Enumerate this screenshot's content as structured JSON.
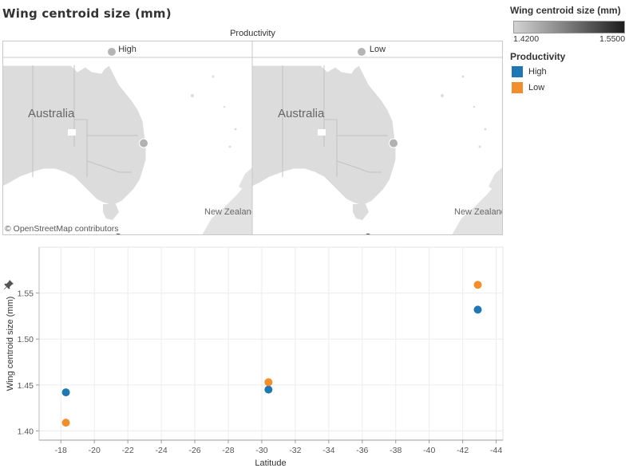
{
  "title": "Wing centroid size (mm)",
  "maps": {
    "header": "Productivity",
    "panels": [
      {
        "title": "High",
        "country_label": "Australia",
        "nz_label": "New Zealand"
      },
      {
        "title": "Low",
        "country_label": "Australia",
        "nz_label": "New Zealand"
      }
    ],
    "attribution": "© OpenStreetMap contributors"
  },
  "legend_size": {
    "title": "Wing centroid size (mm)",
    "min_label": "1.4200",
    "max_label": "1.5500",
    "color_low": "#d4d4d4",
    "color_high": "#1c1c1c"
  },
  "legend_productivity": {
    "title": "Productivity",
    "items": [
      {
        "label": "High",
        "color": "#1f77b4"
      },
      {
        "label": "Low",
        "color": "#f28e2b"
      }
    ]
  },
  "chart_data": {
    "type": "scatter",
    "xlabel": "Latitude",
    "ylabel": "Wing centroid size (mm)",
    "xlim": [
      -16.7,
      -44.4
    ],
    "ylim": [
      1.39,
      1.6
    ],
    "x_ticks": [
      -18,
      -20,
      -22,
      -24,
      -26,
      -28,
      -30,
      -32,
      -34,
      -36,
      -38,
      -40,
      -42,
      -44
    ],
    "y_ticks": [
      1.4,
      1.45,
      1.5,
      1.55
    ],
    "series": [
      {
        "name": "High",
        "color": "#1f77b4",
        "points": [
          {
            "x": -18.3,
            "y": 1.442
          },
          {
            "x": -30.4,
            "y": 1.445
          },
          {
            "x": -42.9,
            "y": 1.532
          }
        ]
      },
      {
        "name": "Low",
        "color": "#f28e2b",
        "points": [
          {
            "x": -18.3,
            "y": 1.409
          },
          {
            "x": -30.4,
            "y": 1.453
          },
          {
            "x": -42.9,
            "y": 1.559
          }
        ]
      }
    ],
    "map_points": [
      {
        "lat": -18.3,
        "value": 1.442
      },
      {
        "lat": -30.4,
        "value": 1.445
      },
      {
        "lat": -42.9,
        "value": 1.532
      }
    ]
  }
}
